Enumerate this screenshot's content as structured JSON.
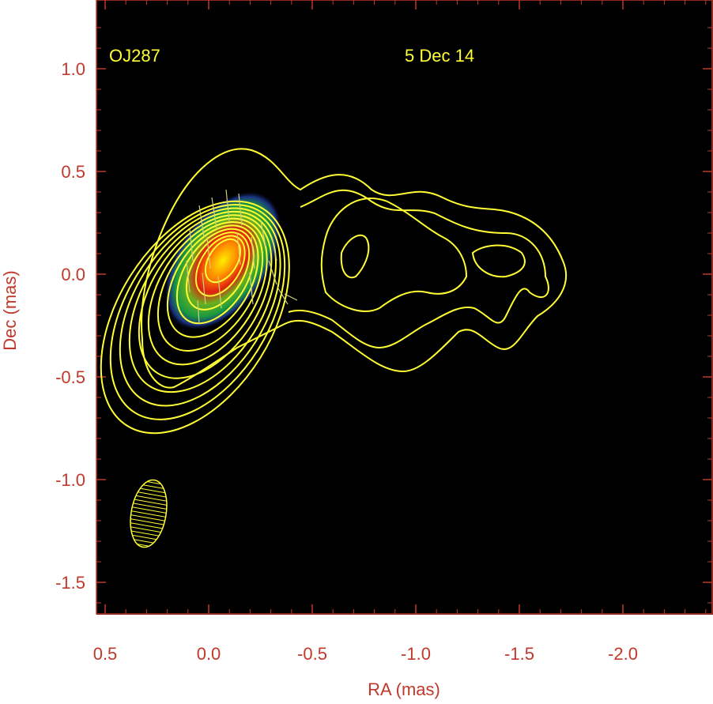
{
  "chart_data": {
    "type": "heatmap",
    "title": "",
    "source_label": "OJ287",
    "epoch_label": "5 Dec 14",
    "xlabel": "RA (mas)",
    "ylabel": "Dec (mas)",
    "xlim": [
      0.5,
      -2.5
    ],
    "ylim": [
      -1.65,
      1.3
    ],
    "x_ticks": [
      "0.5",
      "0.0",
      "-0.5",
      "-1.0",
      "-1.5",
      "-2.0"
    ],
    "y_ticks": [
      "1.0",
      "0.5",
      "0.0",
      "-0.5",
      "-1.0",
      "-1.5"
    ],
    "x_tick_values": [
      0.5,
      0.0,
      -0.5,
      -1.0,
      -1.5,
      -2.0
    ],
    "y_tick_values": [
      1.0,
      0.5,
      0.0,
      -0.5,
      -1.0,
      -1.5
    ],
    "grid": false,
    "colors": {
      "background": "#000000",
      "frame": "#c0392b",
      "contours": "#ffff33",
      "labels": "#c0392b"
    },
    "core": {
      "x": -0.05,
      "y": 0.05,
      "peak_color": "#ffee00"
    },
    "contour_levels": 12,
    "beam": {
      "x": 0.3,
      "y": -1.16,
      "major": 0.32,
      "minor": 0.13,
      "pa_deg": 10
    }
  }
}
